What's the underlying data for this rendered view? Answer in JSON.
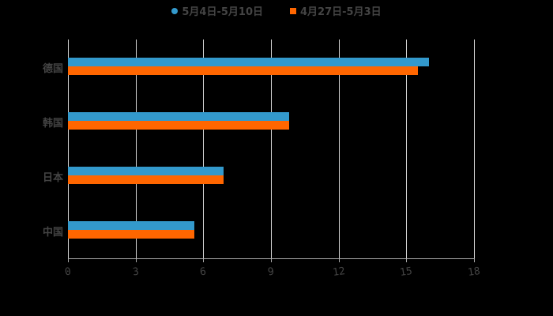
{
  "chart_data": {
    "type": "bar",
    "orientation": "horizontal",
    "categories": [
      "德国",
      "韩国",
      "日本",
      "中国"
    ],
    "series": [
      {
        "name": "5月4日-5月10日",
        "color": "#3399cc",
        "values": [
          16.0,
          9.8,
          6.9,
          5.6
        ]
      },
      {
        "name": "4月27日-5月3日",
        "color": "#ff6600",
        "values": [
          15.5,
          9.8,
          6.9,
          5.6
        ]
      }
    ],
    "title": "",
    "xlabel": "",
    "ylabel": "",
    "xlim": [
      0,
      18
    ],
    "xticks": [
      "0",
      "3",
      "6",
      "9",
      "12",
      "15",
      "18"
    ],
    "grid": true,
    "legend_position": "top"
  },
  "legend": [
    {
      "label": "5月4日-5月10日",
      "color": "#3399cc",
      "shape": "circle"
    },
    {
      "label": "4月27日-5月3日",
      "color": "#ff6600",
      "shape": "square"
    }
  ]
}
